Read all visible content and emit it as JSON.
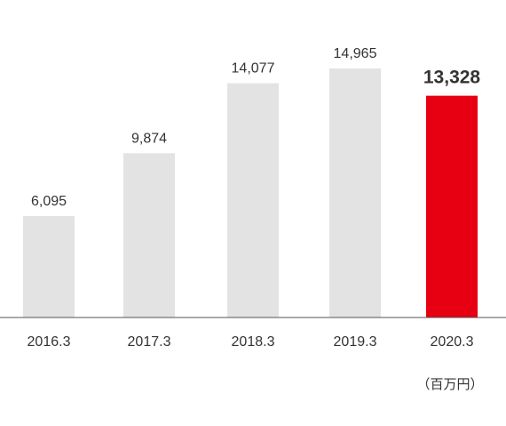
{
  "chart_data": {
    "type": "bar",
    "categories": [
      "2016.3",
      "2017.3",
      "2018.3",
      "2019.3",
      "2020.3"
    ],
    "values": [
      6095,
      9874,
      14077,
      14965,
      13328
    ],
    "value_labels": [
      "6,095",
      "9,874",
      "14,077",
      "14,965",
      "13,328"
    ],
    "highlight_index": 4,
    "unit": "（百万円）",
    "ylim": [
      0,
      16000
    ],
    "grid": false,
    "legend": "none",
    "colors": {
      "bar": "#e3e3e3",
      "highlight_bar": "#e60012",
      "highlight_text": "#e60012",
      "text": "#333333",
      "axis": "#555555"
    }
  }
}
